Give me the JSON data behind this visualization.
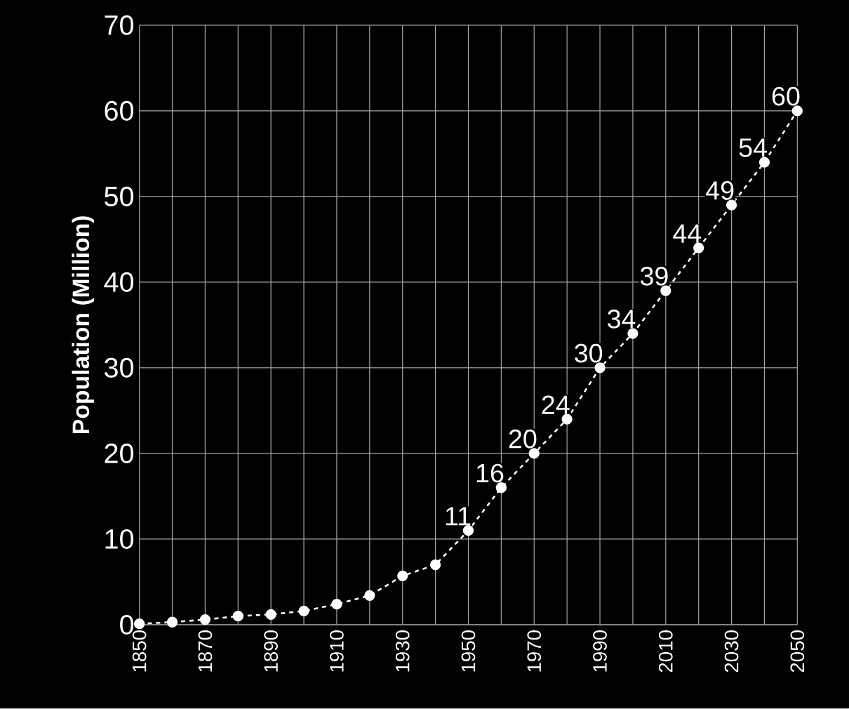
{
  "chart_data": {
    "type": "line",
    "ylabel": "Population (Million)",
    "x": [
      1850,
      1860,
      1870,
      1880,
      1890,
      1900,
      1910,
      1920,
      1930,
      1940,
      1950,
      1960,
      1970,
      1980,
      1990,
      2000,
      2010,
      2020,
      2030,
      2040,
      2050
    ],
    "series": [
      {
        "color": "#ffffff",
        "values": [
          0.1,
          0.3,
          0.6,
          1.0,
          1.2,
          1.6,
          2.4,
          3.4,
          5.7,
          7.0,
          11,
          16,
          20,
          24,
          30,
          34,
          39,
          44,
          49,
          54,
          60
        ],
        "value_labels": [
          null,
          null,
          null,
          null,
          null,
          null,
          null,
          null,
          null,
          null,
          "11",
          "16",
          "20",
          "24",
          "30",
          "34",
          "39",
          "44",
          "49",
          "54",
          "60"
        ]
      }
    ],
    "xlim": [
      1850,
      2050
    ],
    "xticks": [
      1850,
      {
        "value": 1860,
        "label": null
      },
      1870,
      {
        "value": 1880,
        "label": null
      },
      1890,
      {
        "value": 1900,
        "label": null
      },
      1910,
      {
        "value": 1920,
        "label": null
      },
      1930,
      {
        "value": 1940,
        "label": null
      },
      1950,
      {
        "value": 1960,
        "label": null
      },
      1970,
      {
        "value": 1980,
        "label": null
      },
      1990,
      {
        "value": 2000,
        "label": null
      },
      2010,
      {
        "value": 2020,
        "label": null
      },
      2030,
      {
        "value": 2040,
        "label": null
      },
      2050
    ],
    "ylim": [
      0,
      70
    ],
    "yticks": [
      0,
      10,
      20,
      30,
      40,
      50,
      60,
      70
    ],
    "grid": true,
    "marker": "circle",
    "line_style": "dashed"
  }
}
